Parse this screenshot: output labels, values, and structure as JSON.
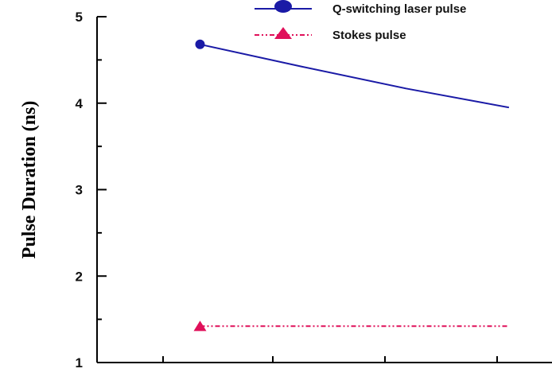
{
  "chart_data": {
    "type": "line",
    "title": "",
    "xlabel": "",
    "ylabel": "Pulse Duration (ns)",
    "ylim": [
      1,
      5
    ],
    "yticks": [
      "1",
      "2",
      "3",
      "4",
      "5"
    ],
    "grid": false,
    "legend_position": "top",
    "series": [
      {
        "name": "Q-switching laser pulse",
        "color": "#1a1aa6",
        "marker": "circle",
        "line_style": "solid",
        "x": [
          0.146,
          0.163,
          0.18,
          0.197
        ],
        "y": [
          4.68,
          4.42,
          4.17,
          3.95
        ]
      },
      {
        "name": "Stokes pulse",
        "color": "#e0105a",
        "marker": "triangle",
        "line_style": "dash-dot-dot",
        "x": [
          0.146,
          0.163,
          0.18,
          0.197
        ],
        "y": [
          1.42,
          1.42,
          1.42,
          1.42
        ]
      }
    ]
  }
}
